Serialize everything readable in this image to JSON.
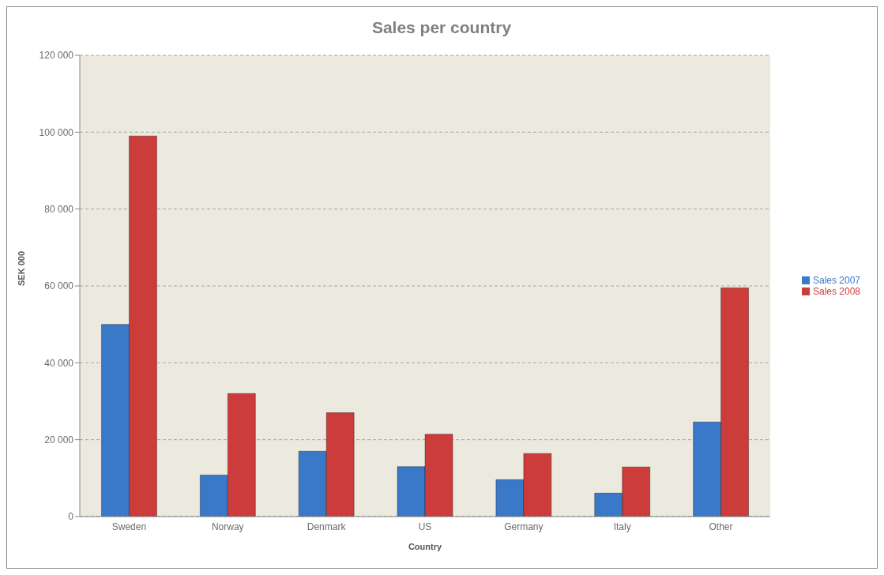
{
  "chart_data": {
    "type": "bar",
    "title": "Sales per country",
    "xlabel": "Country",
    "ylabel": "SEK 000",
    "categories": [
      "Sweden",
      "Norway",
      "Denmark",
      "US",
      "Germany",
      "Italy",
      "Other"
    ],
    "series": [
      {
        "name": "Sales 2007",
        "color": "#3a78c8",
        "values": [
          50000,
          10800,
          17000,
          13000,
          9600,
          6100,
          24600
        ]
      },
      {
        "name": "Sales 2008",
        "color": "#cc3c3a",
        "values": [
          99000,
          32000,
          27000,
          21400,
          16400,
          12900,
          59500
        ]
      }
    ],
    "ylim": [
      0,
      120000
    ],
    "yticks": [
      0,
      {
        "value": 20000,
        "label": "20 000"
      },
      {
        "value": 40000,
        "label": "40 000"
      },
      {
        "value": 60000,
        "label": "60 000"
      },
      {
        "value": 80000,
        "label": "80 000"
      },
      {
        "value": 100000,
        "label": "100 000"
      },
      {
        "value": 120000,
        "label": "120 000"
      }
    ],
    "grid": "y",
    "legend": "right"
  }
}
